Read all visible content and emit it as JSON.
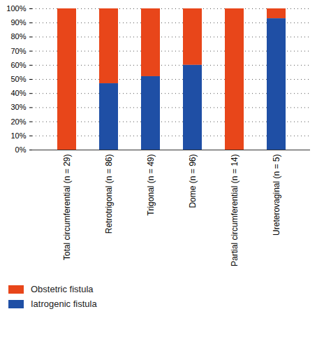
{
  "chart_data": {
    "type": "bar",
    "stacked": true,
    "grid": true,
    "legend": "bottom left",
    "categories": [
      "Total circumferential (n = 29)",
      "Retrotrigonal (n = 86)",
      "Trigonal (n = 49)",
      "Dome (n = 96)",
      "Partial circumferential (n = 14)",
      "Ureterovaginal (n = 5)"
    ],
    "series": [
      {
        "name": "Obstetric fistula",
        "color": "#e8461a",
        "values": [
          100,
          53,
          48,
          40,
          100,
          7
        ]
      },
      {
        "name": "Iatrogenic fistula",
        "color": "#1f4fa5",
        "values": [
          0,
          47,
          52,
          60,
          0,
          93
        ]
      }
    ],
    "ylim": [
      0,
      100
    ],
    "yticks": [
      {
        "value": 0,
        "label": "0%"
      },
      {
        "value": 10,
        "label": "10%"
      },
      {
        "value": 20,
        "label": "20%"
      },
      {
        "value": 30,
        "label": "30%"
      },
      {
        "value": 40,
        "label": "40%"
      },
      {
        "value": 50,
        "label": "50%"
      },
      {
        "value": 60,
        "label": "60%"
      },
      {
        "value": 70,
        "label": "70%"
      },
      {
        "value": 80,
        "label": "80%"
      },
      {
        "value": 90,
        "label": "90%"
      },
      {
        "value": 100,
        "label": "100%"
      }
    ]
  }
}
